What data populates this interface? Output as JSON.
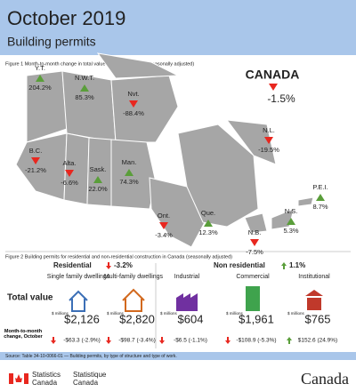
{
  "header": {
    "title": "October 2019",
    "subtitle": "Building permits"
  },
  "figure1": {
    "caption": "Figure 1  Month-to-month change in total value of building permits (seasonally adjusted)",
    "national": {
      "name": "CANADA",
      "value": "-1.5%",
      "trend": "down"
    },
    "provinces": [
      {
        "name": "Y.T.",
        "value": "204.2%",
        "trend": "up"
      },
      {
        "name": "N.W.T.",
        "value": "85.3%",
        "trend": "up"
      },
      {
        "name": "Nvt.",
        "value": "-88.4%",
        "trend": "down"
      },
      {
        "name": "B.C.",
        "value": "-21.2%",
        "trend": "down"
      },
      {
        "name": "Alta.",
        "value": "-6.6%",
        "trend": "down"
      },
      {
        "name": "Sask.",
        "value": "22.0%",
        "trend": "up"
      },
      {
        "name": "Man.",
        "value": "74.3%",
        "trend": "up"
      },
      {
        "name": "Ont.",
        "value": "-3.4%",
        "trend": "down"
      },
      {
        "name": "Que.",
        "value": "12.3%",
        "trend": "up"
      },
      {
        "name": "N.L.",
        "value": "-19.5%",
        "trend": "down"
      },
      {
        "name": "P.E.I.",
        "value": "8.7%",
        "trend": "up"
      },
      {
        "name": "N.S.",
        "value": "5.3%",
        "trend": "up"
      },
      {
        "name": "N.B.",
        "value": "-7.5%",
        "trend": "down"
      }
    ]
  },
  "figure2": {
    "caption": "Figure 2  Building permits for residential and non-residential construction in Canada (seasonally adjusted)",
    "row_total": "Total value",
    "row_change": "Month-to-month change, October",
    "unit": "$ millions",
    "groups": [
      {
        "name": "Residential",
        "change": "-3.2%",
        "trend": "down"
      },
      {
        "name": "Non residential",
        "change": "1.1%",
        "trend": "up"
      }
    ],
    "items": [
      {
        "name": "Single family dwellings",
        "value": "$2,126",
        "change": "-$63.3 (-2.9%)",
        "trend": "down"
      },
      {
        "name": "Multi-family dwellings",
        "value": "$2,820",
        "change": "-$98.7 (-3.4%)",
        "trend": "down"
      },
      {
        "name": "Industrial",
        "value": "$604",
        "change": "-$6.5 (-1.1%)",
        "trend": "down"
      },
      {
        "name": "Commercial",
        "value": "$1,961",
        "change": "-$108.9 (-5.3%)",
        "trend": "down"
      },
      {
        "name": "Institutional",
        "value": "$765",
        "change": "$152.6 (24.9%)",
        "trend": "up"
      }
    ]
  },
  "source": "Source: Table 34-10-0066-01 — Building permits, by type of structure and type of work.",
  "footer": {
    "agency_en_1": "Statistics",
    "agency_en_2": "Canada",
    "agency_fr_1": "Statistique",
    "agency_fr_2": "Canada",
    "wordmark": "Canada"
  }
}
